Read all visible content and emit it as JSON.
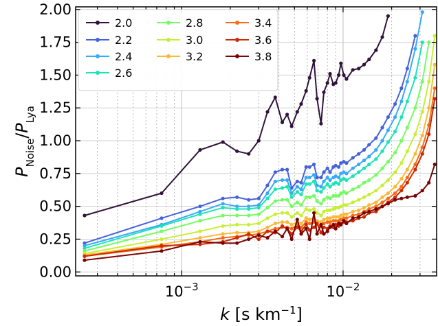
{
  "chart_data": {
    "type": "line",
    "x_scale": "log",
    "xlim": [
      0.00022,
      0.038
    ],
    "ylim": [
      -0.03,
      2.02
    ],
    "xlabel": "k [s km⁻¹]",
    "ylabel": "P_Noise/P_Lya",
    "y_ticks": [
      "0.00",
      "0.25",
      "0.50",
      "0.75",
      "1.00",
      "1.25",
      "1.50",
      "1.75",
      "2.00"
    ],
    "x_ticks": [
      {
        "base": "10",
        "exp": "−3"
      },
      {
        "base": "10",
        "exp": "−2"
      }
    ],
    "grid": true,
    "legend_placement": "top-left",
    "series": [
      {
        "name": "2.0",
        "color": "#30123b",
        "x": [
          0.00025,
          0.00075,
          0.0013,
          0.0018,
          0.0022,
          0.0026,
          0.003,
          0.0034,
          0.0038,
          0.0042,
          0.0045,
          0.0048,
          0.0052,
          0.0055,
          0.0059,
          0.0062,
          0.0066,
          0.0069,
          0.0073,
          0.0076,
          0.008,
          0.0083,
          0.0087,
          0.009,
          0.0094,
          0.0097,
          0.0101,
          0.0105,
          0.0115,
          0.0125,
          0.0135,
          0.0145,
          0.016,
          0.0175,
          0.019
        ],
        "y": [
          0.43,
          0.6,
          0.93,
          0.99,
          0.92,
          0.9,
          1.0,
          1.22,
          1.33,
          1.14,
          1.2,
          1.11,
          1.22,
          1.28,
          1.38,
          1.48,
          1.61,
          1.32,
          1.13,
          1.37,
          1.44,
          1.51,
          1.43,
          1.44,
          1.5,
          1.59,
          1.5,
          1.47,
          1.54,
          1.55,
          1.58,
          1.62,
          1.69,
          1.79,
          1.95
        ]
      },
      {
        "name": "2.2",
        "color": "#4662d7",
        "x": [
          0.00025,
          0.00075,
          0.0013,
          0.0018,
          0.0022,
          0.0026,
          0.003,
          0.0034,
          0.0038,
          0.0042,
          0.0045,
          0.0048,
          0.0052,
          0.0055,
          0.0059,
          0.0062,
          0.0066,
          0.0069,
          0.0073,
          0.0076,
          0.008,
          0.0083,
          0.0087,
          0.009,
          0.0094,
          0.0097,
          0.0101,
          0.0105,
          0.0115,
          0.0125,
          0.0135,
          0.0145,
          0.016,
          0.0175,
          0.019,
          0.021,
          0.023,
          0.025,
          0.028
        ],
        "y": [
          0.22,
          0.41,
          0.5,
          0.56,
          0.57,
          0.55,
          0.56,
          0.66,
          0.76,
          0.78,
          0.78,
          0.64,
          0.69,
          0.68,
          0.8,
          0.8,
          0.82,
          0.72,
          0.72,
          0.76,
          0.79,
          0.76,
          0.8,
          0.81,
          0.8,
          0.83,
          0.84,
          0.83,
          0.87,
          0.9,
          0.93,
          0.97,
          1.02,
          1.1,
          1.18,
          1.28,
          1.4,
          1.55,
          1.8
        ]
      },
      {
        "name": "2.4",
        "color": "#36aaf9",
        "x": [
          0.00025,
          0.00075,
          0.0013,
          0.0018,
          0.0022,
          0.0026,
          0.003,
          0.0034,
          0.0038,
          0.0042,
          0.0045,
          0.0048,
          0.0052,
          0.0055,
          0.0059,
          0.0062,
          0.0066,
          0.0069,
          0.0073,
          0.0076,
          0.008,
          0.0083,
          0.0087,
          0.009,
          0.0094,
          0.0097,
          0.0101,
          0.0105,
          0.0115,
          0.0125,
          0.0135,
          0.0145,
          0.016,
          0.0175,
          0.019,
          0.021,
          0.023,
          0.025,
          0.028,
          0.031
        ],
        "y": [
          0.2,
          0.36,
          0.46,
          0.52,
          0.5,
          0.5,
          0.51,
          0.6,
          0.69,
          0.7,
          0.7,
          0.6,
          0.65,
          0.63,
          0.72,
          0.72,
          0.74,
          0.66,
          0.65,
          0.69,
          0.72,
          0.7,
          0.72,
          0.73,
          0.72,
          0.75,
          0.76,
          0.75,
          0.79,
          0.82,
          0.85,
          0.88,
          0.93,
          1.0,
          1.08,
          1.18,
          1.3,
          1.45,
          1.7,
          1.98
        ]
      },
      {
        "name": "2.6",
        "color": "#1ae4b6",
        "x": [
          0.00025,
          0.00075,
          0.0013,
          0.0018,
          0.0022,
          0.0026,
          0.003,
          0.0034,
          0.0038,
          0.0042,
          0.0045,
          0.0048,
          0.0052,
          0.0055,
          0.0059,
          0.0062,
          0.0066,
          0.0069,
          0.0073,
          0.0076,
          0.008,
          0.0083,
          0.0087,
          0.009,
          0.0094,
          0.0097,
          0.0101,
          0.0105,
          0.0115,
          0.0125,
          0.0135,
          0.0145,
          0.016,
          0.0175,
          0.019,
          0.021,
          0.023,
          0.025,
          0.028,
          0.031
        ],
        "y": [
          0.18,
          0.35,
          0.44,
          0.49,
          0.48,
          0.48,
          0.49,
          0.56,
          0.63,
          0.64,
          0.65,
          0.57,
          0.61,
          0.59,
          0.67,
          0.67,
          0.69,
          0.62,
          0.61,
          0.64,
          0.67,
          0.65,
          0.67,
          0.68,
          0.67,
          0.7,
          0.71,
          0.7,
          0.73,
          0.76,
          0.79,
          0.82,
          0.86,
          0.92,
          0.99,
          1.07,
          1.18,
          1.3,
          1.48,
          1.75
        ]
      },
      {
        "name": "2.8",
        "color": "#72fe5e",
        "x": [
          0.00025,
          0.00075,
          0.0013,
          0.0018,
          0.0022,
          0.0026,
          0.003,
          0.0034,
          0.0038,
          0.0042,
          0.0045,
          0.0048,
          0.0052,
          0.0055,
          0.0059,
          0.0062,
          0.0066,
          0.0069,
          0.0073,
          0.0076,
          0.008,
          0.0083,
          0.0087,
          0.009,
          0.0094,
          0.0097,
          0.0101,
          0.0105,
          0.0115,
          0.0125,
          0.0135,
          0.0145,
          0.016,
          0.0175,
          0.019,
          0.021,
          0.023,
          0.025,
          0.028,
          0.031,
          0.034
        ],
        "y": [
          0.16,
          0.31,
          0.39,
          0.43,
          0.43,
          0.43,
          0.44,
          0.49,
          0.54,
          0.55,
          0.55,
          0.5,
          0.53,
          0.51,
          0.57,
          0.57,
          0.58,
          0.54,
          0.52,
          0.55,
          0.57,
          0.56,
          0.58,
          0.58,
          0.58,
          0.6,
          0.61,
          0.6,
          0.63,
          0.65,
          0.68,
          0.7,
          0.74,
          0.79,
          0.84,
          0.91,
          1.0,
          1.1,
          1.25,
          1.45,
          1.75
        ]
      },
      {
        "name": "3.0",
        "color": "#c7ef34",
        "x": [
          0.00025,
          0.00075,
          0.0013,
          0.0018,
          0.0022,
          0.0026,
          0.003,
          0.0034,
          0.0038,
          0.0042,
          0.0045,
          0.0048,
          0.0052,
          0.0055,
          0.0059,
          0.0062,
          0.0066,
          0.0069,
          0.0073,
          0.0076,
          0.008,
          0.0083,
          0.0087,
          0.009,
          0.0094,
          0.0097,
          0.0101,
          0.0105,
          0.0115,
          0.0125,
          0.0135,
          0.0145,
          0.016,
          0.0175,
          0.019,
          0.021,
          0.023,
          0.025,
          0.028,
          0.031,
          0.034,
          0.037
        ],
        "y": [
          0.14,
          0.25,
          0.31,
          0.35,
          0.36,
          0.36,
          0.37,
          0.41,
          0.44,
          0.45,
          0.45,
          0.42,
          0.45,
          0.43,
          0.48,
          0.47,
          0.48,
          0.45,
          0.43,
          0.46,
          0.47,
          0.47,
          0.48,
          0.49,
          0.49,
          0.5,
          0.51,
          0.51,
          0.53,
          0.55,
          0.57,
          0.59,
          0.62,
          0.66,
          0.7,
          0.76,
          0.83,
          0.92,
          1.05,
          1.22,
          1.45,
          1.8
        ]
      },
      {
        "name": "3.2",
        "color": "#fbb938",
        "x": [
          0.00025,
          0.00075,
          0.0013,
          0.0018,
          0.0022,
          0.0026,
          0.003,
          0.0034,
          0.0038,
          0.0042,
          0.0045,
          0.0048,
          0.0052,
          0.0055,
          0.0059,
          0.0062,
          0.0066,
          0.0069,
          0.0073,
          0.0076,
          0.008,
          0.0083,
          0.0087,
          0.009,
          0.0094,
          0.0097,
          0.0101,
          0.0105,
          0.0115,
          0.0125,
          0.0135,
          0.0145,
          0.016,
          0.0175,
          0.019,
          0.021,
          0.023,
          0.025,
          0.028,
          0.031,
          0.034,
          0.037
        ],
        "y": [
          0.13,
          0.21,
          0.26,
          0.29,
          0.3,
          0.3,
          0.31,
          0.34,
          0.37,
          0.38,
          0.38,
          0.36,
          0.38,
          0.37,
          0.41,
          0.4,
          0.41,
          0.39,
          0.38,
          0.4,
          0.41,
          0.41,
          0.42,
          0.42,
          0.42,
          0.43,
          0.44,
          0.44,
          0.46,
          0.47,
          0.49,
          0.51,
          0.53,
          0.57,
          0.6,
          0.65,
          0.71,
          0.78,
          0.9,
          1.04,
          1.25,
          1.58
        ]
      },
      {
        "name": "3.4",
        "color": "#f66b19",
        "x": [
          0.00025,
          0.00075,
          0.0013,
          0.0018,
          0.0022,
          0.0026,
          0.003,
          0.0034,
          0.0038,
          0.0042,
          0.0045,
          0.0048,
          0.0052,
          0.0055,
          0.0059,
          0.0062,
          0.0066,
          0.0069,
          0.0073,
          0.0076,
          0.008,
          0.0083,
          0.0087,
          0.009,
          0.0094,
          0.0097,
          0.0101,
          0.0105,
          0.0115,
          0.0125,
          0.0135,
          0.0145,
          0.016,
          0.0175,
          0.019,
          0.021,
          0.023,
          0.025,
          0.028,
          0.031,
          0.034,
          0.037
        ],
        "y": [
          0.12,
          0.19,
          0.23,
          0.26,
          0.27,
          0.28,
          0.29,
          0.31,
          0.33,
          0.34,
          0.34,
          0.33,
          0.36,
          0.34,
          0.38,
          0.37,
          0.38,
          0.36,
          0.35,
          0.37,
          0.38,
          0.38,
          0.39,
          0.39,
          0.39,
          0.4,
          0.41,
          0.41,
          0.43,
          0.44,
          0.46,
          0.48,
          0.5,
          0.53,
          0.56,
          0.6,
          0.65,
          0.72,
          0.82,
          0.95,
          1.12,
          1.4
        ]
      },
      {
        "name": "3.6",
        "color": "#cb2a04",
        "x": [
          0.00025,
          0.00075,
          0.0013,
          0.0018,
          0.0022,
          0.0026,
          0.003,
          0.0034,
          0.0038,
          0.0042,
          0.0045,
          0.0048,
          0.0052,
          0.0055,
          0.0059,
          0.0062,
          0.0066,
          0.0069,
          0.0073,
          0.0076,
          0.008,
          0.0083,
          0.0087,
          0.009,
          0.0094,
          0.0097,
          0.0101,
          0.0105,
          0.0115,
          0.0125,
          0.0135,
          0.0145,
          0.016,
          0.0175,
          0.019,
          0.021,
          0.023,
          0.025,
          0.028,
          0.031,
          0.034,
          0.037
        ],
        "y": [
          0.12,
          0.2,
          0.21,
          0.23,
          0.26,
          0.29,
          0.25,
          0.31,
          0.3,
          0.35,
          0.33,
          0.29,
          0.34,
          0.31,
          0.36,
          0.32,
          0.34,
          0.37,
          0.3,
          0.34,
          0.33,
          0.35,
          0.34,
          0.36,
          0.35,
          0.37,
          0.38,
          0.38,
          0.39,
          0.41,
          0.42,
          0.45,
          0.46,
          0.5,
          0.53,
          0.57,
          0.62,
          0.68,
          0.78,
          0.9,
          1.05,
          1.32
        ]
      },
      {
        "name": "3.8",
        "color": "#7a0403",
        "x": [
          0.00025,
          0.00075,
          0.0013,
          0.0018,
          0.0022,
          0.0026,
          0.003,
          0.0034,
          0.0038,
          0.0042,
          0.0045,
          0.0048,
          0.0052,
          0.0055,
          0.0059,
          0.0062,
          0.0066,
          0.0069,
          0.0073,
          0.0076,
          0.008,
          0.0083,
          0.0087,
          0.009,
          0.0094,
          0.0097,
          0.0101,
          0.0105,
          0.0115,
          0.0125,
          0.0135,
          0.0145,
          0.016,
          0.0175,
          0.019,
          0.021,
          0.023,
          0.025,
          0.028,
          0.031,
          0.034,
          0.037
        ],
        "y": [
          0.09,
          0.16,
          0.23,
          0.22,
          0.22,
          0.25,
          0.28,
          0.26,
          0.31,
          0.27,
          0.33,
          0.25,
          0.4,
          0.29,
          0.33,
          0.25,
          0.45,
          0.29,
          0.36,
          0.29,
          0.31,
          0.34,
          0.36,
          0.33,
          0.37,
          0.36,
          0.39,
          0.37,
          0.41,
          0.42,
          0.45,
          0.46,
          0.48,
          0.5,
          0.52,
          0.55,
          0.56,
          0.57,
          0.58,
          0.62,
          0.68,
          0.82
        ]
      }
    ]
  }
}
